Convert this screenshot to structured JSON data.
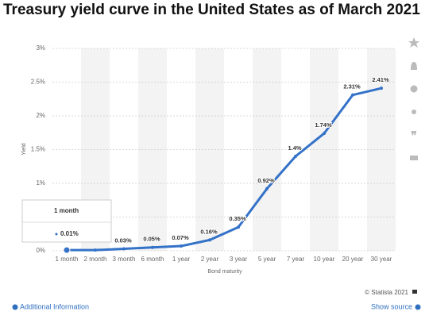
{
  "chart_data": {
    "type": "line",
    "title": "Treasury yield curve in the United States as of March 2021",
    "x_label": "Bond maturity",
    "y_label": "Yield",
    "categories": [
      "1 month",
      "2 month",
      "3 month",
      "6 month",
      "1 year",
      "2 year",
      "3 year",
      "5 year",
      "7 year",
      "10 year",
      "20 year",
      "30 year"
    ],
    "values": [
      0.01,
      0.01,
      0.03,
      0.05,
      0.07,
      0.16,
      0.35,
      0.92,
      1.4,
      1.74,
      2.31,
      2.41
    ],
    "value_labels": [
      "0.01%",
      null,
      "0.03%",
      "0.05%",
      "0.07%",
      "0.16%",
      "0.35%",
      "0.92%",
      "1.4%",
      "1.74%",
      "2.31%",
      "2.41%"
    ],
    "color": "#3472c8",
    "ylim": [
      0,
      3
    ],
    "yticks": [
      {
        "value": 0,
        "label": "0%"
      },
      {
        "value": 0.5,
        "label": "0.5%"
      },
      {
        "value": 1,
        "label": "1%"
      },
      {
        "value": 1.5,
        "label": "1.5%"
      },
      {
        "value": 2,
        "label": "2%"
      },
      {
        "value": 2.5,
        "label": "2.5%"
      },
      {
        "value": 3,
        "label": "3%"
      }
    ],
    "grid": true,
    "tooltip_index": 0
  },
  "footer": {
    "copyright": "© Statista 2021",
    "additional_info": "Additional Information",
    "show_source": "Show source"
  }
}
